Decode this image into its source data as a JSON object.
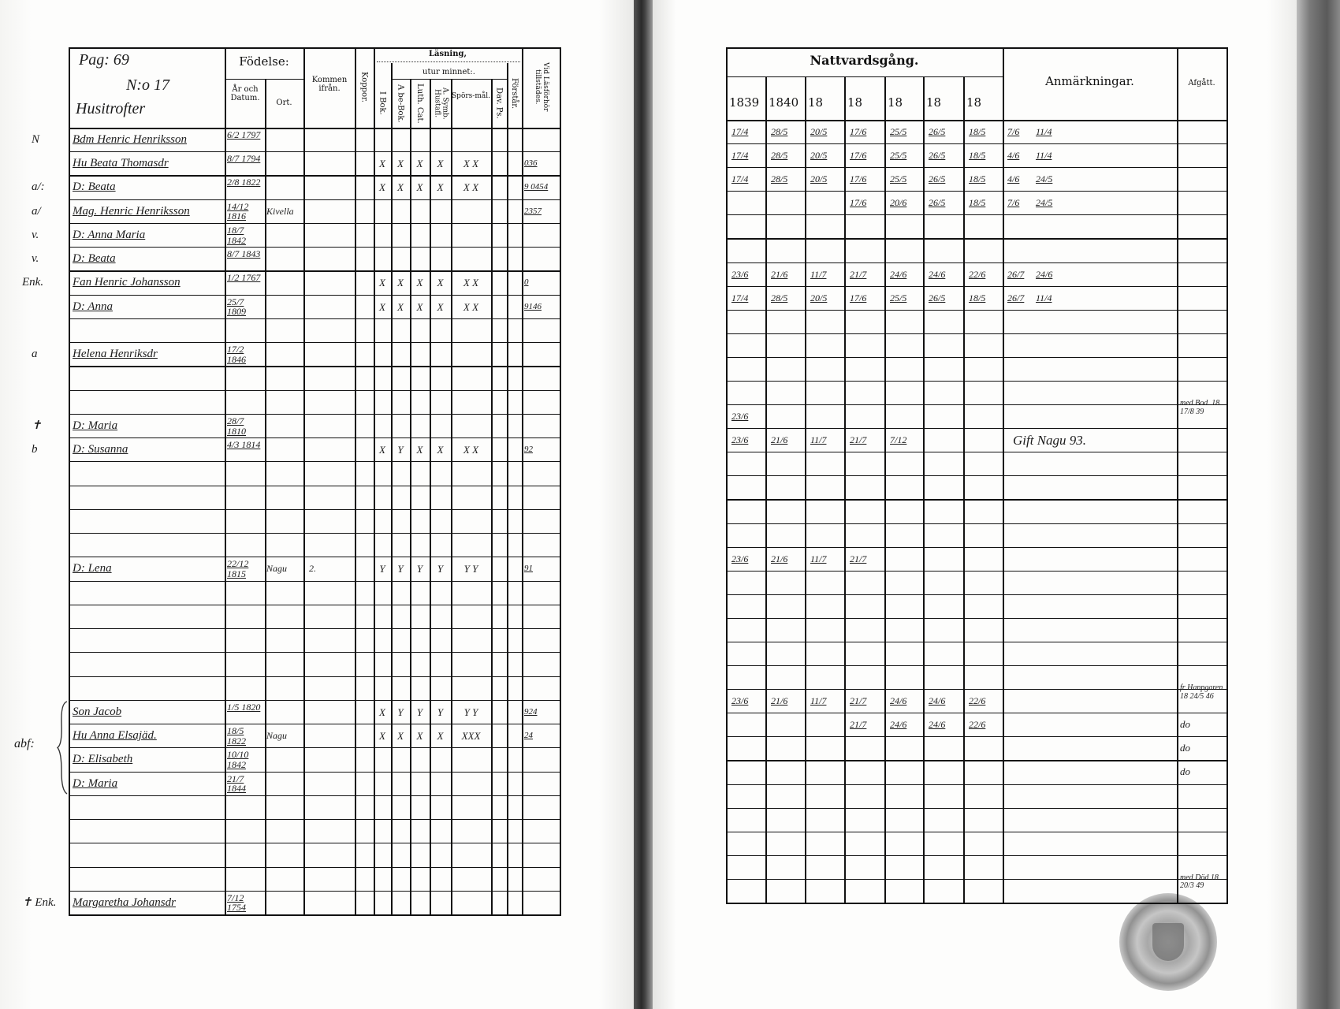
{
  "left_page": {
    "corner": {
      "page": "Pag: 69",
      "number": "N:o 17",
      "place": "Husitrofter"
    },
    "headers": {
      "fodelse": "Födelse:",
      "ar_datum": "År och Datum.",
      "ort": "Ort.",
      "kommen": "Kommen ifrån.",
      "koppor": "Koppor.",
      "lasning": "Läsning,",
      "utur_minnet": "utur minnet:.",
      "i_bok": "I Bok.",
      "abc_bok": "A be-Bok.",
      "luth_cat": "Luth. Cat.",
      "symb": "A. Symb. Hustafl.",
      "sporsmal": "Spörs-mål.",
      "dav_ps": "Dav. Ps.",
      "forstar": "Förstår.",
      "vid_lasforhor": "Vid Läsförhör tillstädes."
    },
    "bracket_note": "abf:",
    "rows": [
      {
        "row": 0,
        "margin": "N",
        "name": "Bdm Henric Henriksson",
        "date": "6/2 1797",
        "ort": "",
        "kommen": "",
        "readings": [],
        "tillstades": ""
      },
      {
        "row": 1,
        "margin": "",
        "name": "Hu Beata Thomasdr",
        "date": "8/7 1794",
        "ort": "",
        "kommen": "",
        "readings": [
          "X",
          "X",
          "X",
          "X",
          "X X"
        ],
        "tillstades": "036"
      },
      {
        "row": 2,
        "margin": "a/:",
        "name": "D: Beata",
        "date": "2/8 1822",
        "ort": "",
        "kommen": "",
        "readings": [
          "X",
          "X",
          "X",
          "X",
          "X X"
        ],
        "tillstades": "9 0454"
      },
      {
        "row": 3,
        "margin": "a/",
        "name": "Mag. Henric Henriksson",
        "date": "14/12 1816",
        "ort": "Kivella",
        "kommen": "",
        "readings": [],
        "tillstades": "2357"
      },
      {
        "row": 4,
        "margin": "v.",
        "name": "D: Anna Maria",
        "date": "18/7 1842",
        "ort": "",
        "kommen": "",
        "readings": [],
        "tillstades": ""
      },
      {
        "row": 5,
        "margin": "v.",
        "name": "D: Beata",
        "date": "8/7 1843",
        "ort": "",
        "kommen": "",
        "readings": [],
        "tillstades": ""
      },
      {
        "row": 6,
        "margin": "Enk.",
        "name": "Fan Henric Johansson",
        "date": "1/2 1767",
        "ort": "",
        "kommen": "",
        "readings": [
          "X",
          "X",
          "X",
          "X",
          "X X"
        ],
        "tillstades": "0"
      },
      {
        "row": 7,
        "margin": "",
        "name": "D: Anna",
        "date": "25/7 1809",
        "ort": "",
        "kommen": "",
        "readings": [
          "X",
          "X",
          "X",
          "X",
          "X X"
        ],
        "tillstades": "9146"
      },
      {
        "row": 9,
        "margin": "a",
        "name": "Helena Henriksdr",
        "date": "17/2 1846",
        "ort": "",
        "kommen": "",
        "readings": [],
        "tillstades": ""
      },
      {
        "row": 12,
        "margin": "✝",
        "name": "D: Maria",
        "date": "28/7 1810",
        "ort": "",
        "kommen": "",
        "readings": [],
        "tillstades": ""
      },
      {
        "row": 13,
        "margin": "b",
        "name": "D: Susanna",
        "date": "4/3 1814",
        "ort": "",
        "kommen": "",
        "readings": [
          "X",
          "Y",
          "X",
          "X",
          "X X"
        ],
        "tillstades": "92"
      },
      {
        "row": 18,
        "margin": "",
        "name": "D: Lena",
        "date": "22/12 1815",
        "ort": "Nagu",
        "kommen": "2.",
        "readings": [
          "Y",
          "Y",
          "Y",
          "Y",
          "Y Y"
        ],
        "tillstades": "91"
      },
      {
        "row": 24,
        "margin": "",
        "name": "Son Jacob",
        "date": "1/5 1820",
        "ort": "",
        "kommen": "",
        "readings": [
          "X",
          "Y",
          "Y",
          "Y",
          "Y Y"
        ],
        "tillstades": "924"
      },
      {
        "row": 25,
        "margin": "",
        "name": "Hu Anna Elsajäd.",
        "date": "18/5 1822",
        "ort": "Nagu",
        "kommen": "",
        "readings": [
          "X",
          "X",
          "X",
          "X",
          "XXX"
        ],
        "tillstades": "24"
      },
      {
        "row": 26,
        "margin": "",
        "name": "D: Elisabeth",
        "date": "10/10 1842",
        "ort": "",
        "kommen": "",
        "readings": [],
        "tillstades": ""
      },
      {
        "row": 27,
        "margin": "",
        "name": "D: Maria",
        "date": "21/7 1844",
        "ort": "",
        "kommen": "",
        "readings": [],
        "tillstades": ""
      },
      {
        "row": 32,
        "margin": "✝ Enk.",
        "name": "Margaretha Johansdr",
        "date": "7/12 1754",
        "ort": "",
        "kommen": "",
        "readings": [],
        "tillstades": ""
      }
    ]
  },
  "right_page": {
    "headers": {
      "nattvardsgang": "Nattvardsgång.",
      "years": [
        "1839",
        "1840",
        "18",
        "18",
        "18",
        "18",
        "18"
      ],
      "anmarkningar": "Anmärkningar.",
      "afgatt": "Afgått."
    },
    "rows": [
      {
        "row": 0,
        "nattvard": [
          "17/4",
          "28/5",
          "20/5",
          "17/6",
          "25/5",
          "26/5",
          "18/5"
        ],
        "anm": [
          "7/6",
          "11/4"
        ],
        "afgatt": ""
      },
      {
        "row": 1,
        "nattvard": [
          "17/4",
          "28/5",
          "20/5",
          "17/6",
          "25/5",
          "26/5",
          "18/5"
        ],
        "anm": [
          "4/6",
          "11/4"
        ],
        "afgatt": ""
      },
      {
        "row": 2,
        "nattvard": [
          "17/4",
          "28/5",
          "20/5",
          "17/6",
          "25/5",
          "26/5",
          "18/5"
        ],
        "anm": [
          "4/6",
          "24/5"
        ],
        "afgatt": ""
      },
      {
        "row": 3,
        "nattvard": [
          "",
          "",
          "",
          "17/6",
          "20/6",
          "26/5",
          "18/5"
        ],
        "anm": [
          "7/6",
          "24/5"
        ],
        "afgatt": ""
      },
      {
        "row": 6,
        "nattvard": [
          "23/6",
          "21/6",
          "11/7",
          "21/7",
          "24/6",
          "24/6",
          "22/6"
        ],
        "anm": [
          "26/7",
          "24/6"
        ],
        "afgatt": ""
      },
      {
        "row": 7,
        "nattvard": [
          "17/4",
          "28/5",
          "20/5",
          "17/6",
          "25/5",
          "26/5",
          "18/5"
        ],
        "anm": [
          "26/7",
          "11/4"
        ],
        "afgatt": ""
      },
      {
        "row": 12,
        "nattvard": [
          "23/6",
          "",
          "",
          "",
          "",
          "",
          ""
        ],
        "anm": [],
        "afgatt": "med Bod. 18 17/8 39"
      },
      {
        "row": 13,
        "nattvard": [
          "23/6",
          "21/6",
          "11/7",
          "21/7",
          "7/12",
          "",
          ""
        ],
        "anm": [],
        "anm_text": "Gift Nagu 93.",
        "afgatt": ""
      },
      {
        "row": 18,
        "nattvard": [
          "23/6",
          "21/6",
          "11/7",
          "21/7",
          "",
          "",
          ""
        ],
        "anm": [],
        "afgatt": ""
      },
      {
        "row": 24,
        "nattvard": [
          "23/6",
          "21/6",
          "11/7",
          "21/7",
          "24/6",
          "24/6",
          "22/6"
        ],
        "anm": [],
        "afgatt": "fr Hanpgaren 18 24/5 46"
      },
      {
        "row": 25,
        "nattvard": [
          "",
          "",
          "",
          "21/7",
          "24/6",
          "24/6",
          "22/6"
        ],
        "anm": [],
        "afgatt": "do"
      },
      {
        "row": 26,
        "nattvard": [
          "",
          "",
          "",
          "",
          "",
          "",
          ""
        ],
        "anm": [],
        "afgatt": "do"
      },
      {
        "row": 27,
        "nattvard": [
          "",
          "",
          "",
          "",
          "",
          "",
          ""
        ],
        "anm": [],
        "afgatt": "do"
      },
      {
        "row": 32,
        "nattvard": [
          "",
          "",
          "",
          "",
          "",
          "",
          ""
        ],
        "anm": [],
        "afgatt": "med Död 18 20/3 49"
      }
    ]
  },
  "seal": {
    "icon": "parish-seal-icon"
  },
  "colors": {
    "ink": "#1a1a1a",
    "paper": "#fdfdfc",
    "gutter": "#2a2a2a"
  }
}
